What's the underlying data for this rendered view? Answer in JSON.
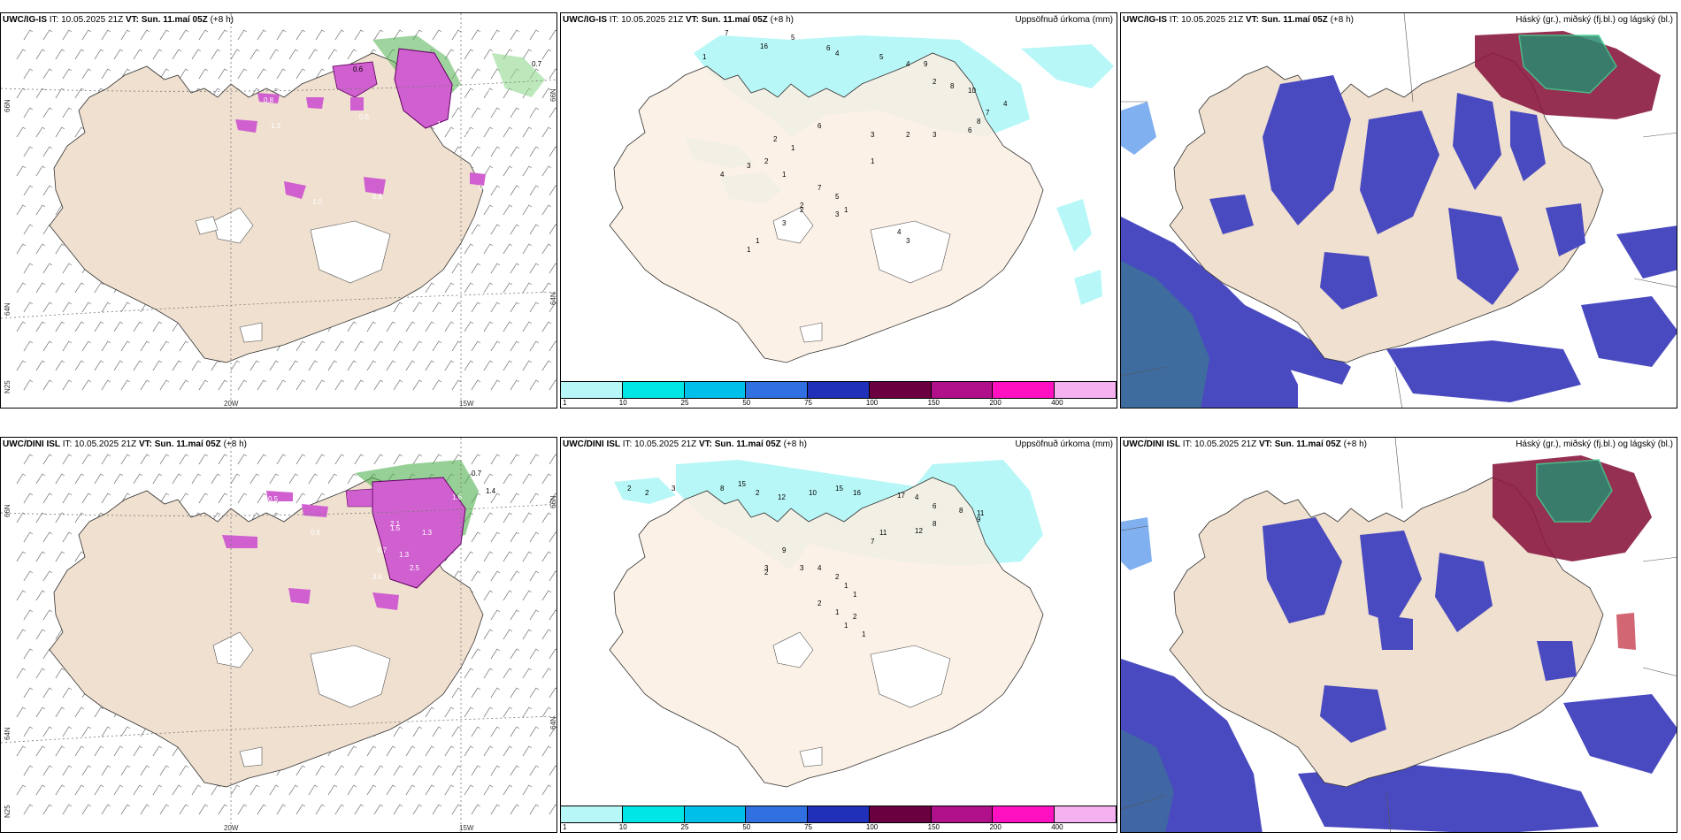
{
  "panels": [
    {
      "model": "UWC/IG-IS",
      "it_label": "IT:",
      "it_time": "10.05.2025 21Z",
      "vt_label": "VT:",
      "vt_time": "Sun. 11.maí 05Z",
      "lead": "(+8 h)",
      "right_title": "",
      "lat_labels": [
        "66N",
        "64N",
        "N25"
      ],
      "lon_labels": [
        "20W",
        "15W"
      ],
      "values": [
        "0.6",
        "0.7",
        "1.1",
        "0.7",
        "1.3",
        "0.6",
        "0.8",
        "1.3",
        "1.0",
        "0.8",
        "0.7",
        "0.8"
      ]
    },
    {
      "model": "UWC/IG-IS",
      "it_label": "IT:",
      "it_time": "10.05.2025 21Z",
      "vt_label": "VT:",
      "vt_time": "Sun. 11.maí 05Z",
      "lead": "(+8 h)",
      "right_title": "Uppsöfnuð úrkoma (mm)",
      "values": [
        "1",
        "7",
        "16",
        "5",
        "6",
        "4",
        "5",
        "9",
        "4",
        "2",
        "8",
        "10",
        "4",
        "7",
        "8",
        "6",
        "3",
        "2",
        "3",
        "6",
        "2",
        "1",
        "2",
        "3",
        "4",
        "1",
        "7",
        "2",
        "5",
        "1",
        "3",
        "1",
        "1",
        "2",
        "3",
        "1",
        "4",
        "3"
      ],
      "colorbar_ticks": [
        "1",
        "10",
        "25",
        "50",
        "75",
        "100",
        "150",
        "200",
        "400"
      ],
      "colorbar_colors": [
        "#b8f7f7",
        "#00e6e6",
        "#00bfe8",
        "#3070e0",
        "#2030b8",
        "#6a0040",
        "#b0108a",
        "#ff10c0",
        "#f5b0f0"
      ]
    },
    {
      "model": "UWC/IG-IS",
      "it_label": "IT:",
      "it_time": "10.05.2025 21Z",
      "vt_label": "VT:",
      "vt_time": "Sun. 11.maí 05Z",
      "lead": "(+8 h)",
      "right_title": "Háský (gr.), miðský (fj.bl.) og lágský (bl.)"
    },
    {
      "model": "UWC/DINI ISL",
      "it_label": "IT:",
      "it_time": "10.05.2025 21Z",
      "vt_label": "VT:",
      "vt_time": "Sun. 11.maí 05Z",
      "lead": "(+8 h)",
      "right_title": "",
      "lat_labels": [
        "66N",
        "64N",
        "N25"
      ],
      "lon_labels": [
        "20W",
        "15W"
      ],
      "values": [
        "0.7",
        "1.4",
        "2.2",
        "1.4",
        "1.6",
        "1.3",
        "2.1",
        "1.5",
        "2.5",
        "0.7",
        "3.6",
        "1.3",
        "0.5",
        "0.6"
      ]
    },
    {
      "model": "UWC/DINI ISL",
      "it_label": "IT:",
      "it_time": "10.05.2025 21Z",
      "vt_label": "VT:",
      "vt_time": "Sun. 11.maí 05Z",
      "lead": "(+8 h)",
      "right_title": "Uppsöfnuð úrkoma (mm)",
      "values": [
        "2",
        "2",
        "3",
        "8",
        "15",
        "2",
        "12",
        "10",
        "15",
        "16",
        "17",
        "4",
        "6",
        "8",
        "11",
        "9",
        "8",
        "12",
        "11",
        "7",
        "9",
        "3",
        "2",
        "3",
        "4",
        "2",
        "1",
        "1",
        "2",
        "1",
        "2",
        "1",
        "1"
      ],
      "colorbar_ticks": [
        "1",
        "10",
        "25",
        "50",
        "75",
        "100",
        "150",
        "200",
        "400"
      ],
      "colorbar_colors": [
        "#b8f7f7",
        "#00e6e6",
        "#00bfe8",
        "#3070e0",
        "#2030b8",
        "#6a0040",
        "#b0108a",
        "#ff10c0",
        "#f5b0f0"
      ]
    },
    {
      "model": "UWC/DINI ISL",
      "it_label": "IT:",
      "it_time": "10.05.2025 21Z",
      "vt_label": "VT:",
      "vt_time": "Sun. 11.maí 05Z",
      "lead": "(+8 h)",
      "right_title": "Háský (gr.), miðský (fj.bl.) og lágský (bl.)"
    }
  ],
  "colors": {
    "land": "#efe0cf",
    "land_light": "#fbeee2",
    "glacier": "#ffffff",
    "precip_light": "#b8f7f7",
    "magenta": "#d060d0",
    "green": "#50b050",
    "cloud_blue": "#4a4ac0",
    "cloud_light": "#80b0f0",
    "high_cloud": "#8a1a40",
    "teal": "#2a8a70"
  }
}
